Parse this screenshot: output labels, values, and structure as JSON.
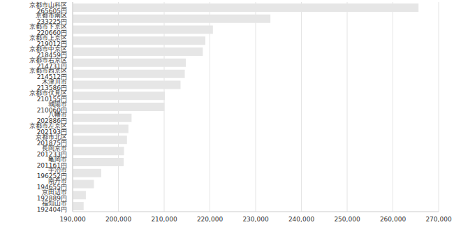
{
  "chart_data": {
    "type": "bar",
    "orientation": "horizontal",
    "categories": [
      "京都市山科区 265605円",
      "京都市南区 233225円",
      "京都市下京区 220660円",
      "京都市上京区 219012円",
      "京都市中京区 218459円",
      "京都市右京区 214731円",
      "京都市西京区 214512円",
      "木津川市 213586円",
      "京都市伏見区 210155円",
      "城陽市 210060円",
      "八幡市 202886円",
      "京都市左京区 202193円",
      "京都市北区 201875円",
      "長岡京市 201233円",
      "亀岡市 201161円",
      "宇治市 196252円",
      "南丹市 194655円",
      "京田辺市 192889円",
      "福知山市 192404円"
    ],
    "values": [
      265605,
      233225,
      220660,
      219012,
      218459,
      214731,
      214512,
      213586,
      210155,
      210060,
      202886,
      202193,
      201875,
      201233,
      201161,
      196252,
      194655,
      192889,
      192404
    ],
    "color": "#e6e6e6",
    "xlim": [
      190000,
      270000
    ],
    "xticks": [
      {
        "value": 190000,
        "label": "190,000"
      },
      {
        "value": 200000,
        "label": "200,000"
      },
      {
        "value": 210000,
        "label": "210,000"
      },
      {
        "value": 220000,
        "label": "220,000"
      },
      {
        "value": 230000,
        "label": "230,000"
      },
      {
        "value": 240000,
        "label": "240,000"
      },
      {
        "value": 250000,
        "label": "250,000"
      },
      {
        "value": 260000,
        "label": "260,000"
      },
      {
        "value": 270000,
        "label": "270,000"
      }
    ],
    "grid": true
  }
}
